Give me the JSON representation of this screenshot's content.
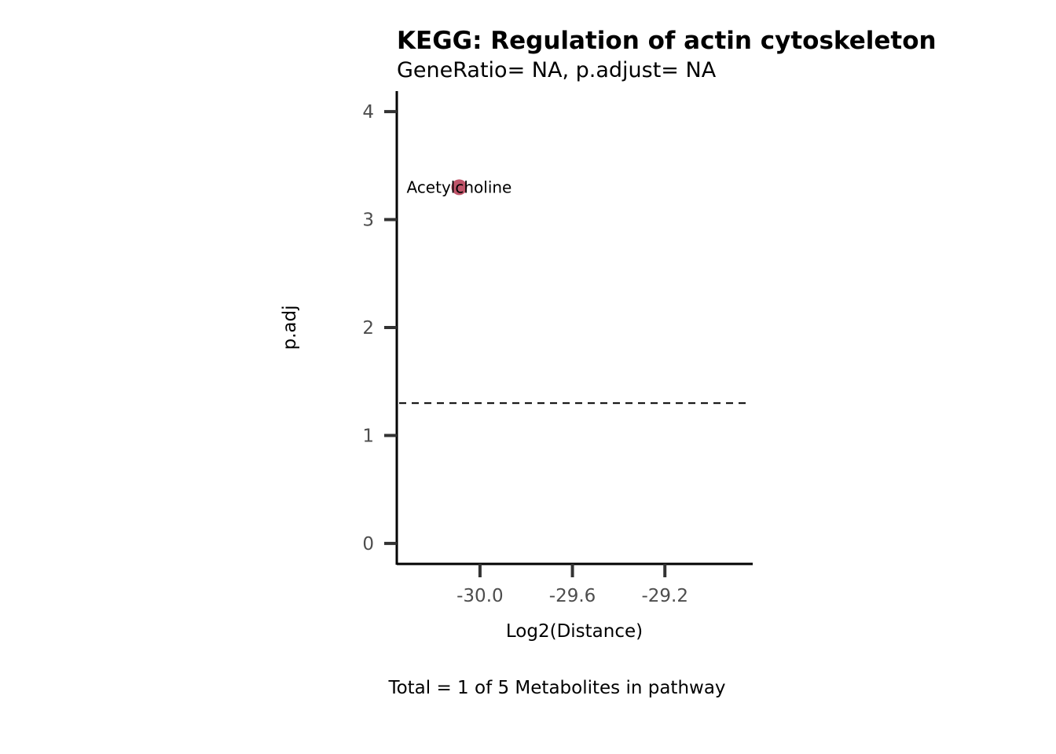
{
  "chart_data": {
    "type": "scatter",
    "title": "KEGG: Regulation of actin cytoskeleton",
    "subtitle": "GeneRatio= NA, p.adjust= NA",
    "xlabel": "Log2(Distance)",
    "ylabel": "p.adj",
    "caption": "Total = 1 of 5 Metabolites in pathway",
    "xlim": [
      -30.36,
      -28.82
    ],
    "ylim": [
      -0.19,
      4.19
    ],
    "x_ticks": [
      -30.0,
      -29.6,
      -29.2
    ],
    "x_tick_labels": [
      "-30.0",
      "-29.6",
      "-29.2"
    ],
    "y_ticks": [
      0,
      1,
      2,
      3,
      4
    ],
    "y_tick_labels": [
      "0",
      "1",
      "2",
      "3",
      "4"
    ],
    "threshold_line": {
      "y": 1.3,
      "style": "dashed"
    },
    "points": [
      {
        "label": "Acetylcholine",
        "x": -30.09,
        "y": 3.3,
        "color": "#c0556a"
      }
    ],
    "grid": false,
    "legend": "none"
  }
}
